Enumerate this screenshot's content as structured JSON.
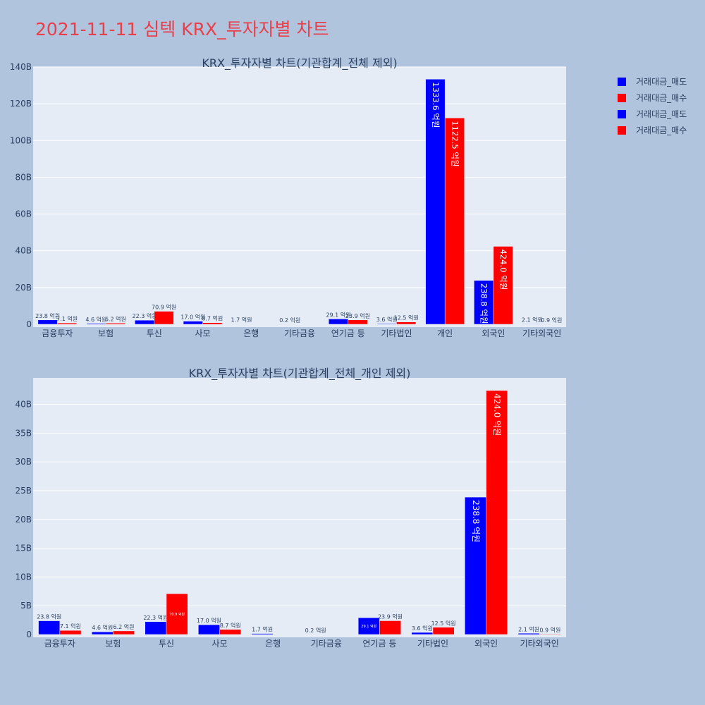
{
  "page": {
    "title": "2021-11-11 심텍 KRX_투자자별 차트"
  },
  "legend": {
    "items": [
      {
        "label": "거래대금_매도",
        "color": "#0000ff"
      },
      {
        "label": "거래대금_매수",
        "color": "#ff0000"
      },
      {
        "label": "거래대금_매도",
        "color": "#0000ff"
      },
      {
        "label": "거래대금_매수",
        "color": "#ff0000"
      }
    ]
  },
  "chart_data": [
    {
      "type": "bar",
      "title": "KRX_투자자별 차트(기관합계_전체 제외)",
      "categories": [
        "금융투자",
        "보험",
        "투신",
        "사모",
        "은행",
        "기타금융",
        "연기금 등",
        "기타법인",
        "개인",
        "외국인",
        "기타외국인"
      ],
      "series": [
        {
          "name": "거래대금_매도",
          "color": "#0000ff",
          "values": [
            2.38,
            0.46,
            2.23,
            1.7,
            0.17,
            0.02,
            2.91,
            0.36,
            133.36,
            23.88,
            0.21
          ],
          "labels": [
            "23.8 억원",
            "4.6 억원",
            "22.3 억원",
            "17.0 억원",
            "1.7 억원",
            "0.2 억원",
            "29.1 억원",
            "3.6 억원",
            "1333.6 억원",
            "238.8 억원",
            "2.1 억원"
          ]
        },
        {
          "name": "거래대금_매수",
          "color": "#ff0000",
          "values": [
            0.71,
            0.62,
            7.09,
            0.87,
            0,
            0,
            2.39,
            1.25,
            112.25,
            42.4,
            0.09
          ],
          "labels": [
            "7.1 억원",
            "6.2 억원",
            "70.9 억원",
            "8.7 억원",
            "",
            "",
            "23.9 억원",
            "12.5 억원",
            "1122.5 억원",
            "424.0 억원",
            "0.9 억원"
          ]
        }
      ],
      "yticks": [
        "0",
        "20B",
        "40B",
        "60B",
        "80B",
        "100B",
        "120B",
        "140B"
      ],
      "ylim": [
        0,
        140
      ],
      "grid": true
    },
    {
      "type": "bar",
      "title": "KRX_투자자별 차트(기관합계_전체_개인 제외)",
      "categories": [
        "금융투자",
        "보험",
        "투신",
        "사모",
        "은행",
        "기타금융",
        "연기금 등",
        "기타법인",
        "외국인",
        "기타외국인"
      ],
      "series": [
        {
          "name": "거래대금_매도",
          "color": "#0000ff",
          "values": [
            2.38,
            0.46,
            2.23,
            1.7,
            0.17,
            0.02,
            2.91,
            0.36,
            23.88,
            0.21
          ],
          "labels": [
            "23.8 억원",
            "4.6 억원",
            "22.3 억원",
            "17.0 억원",
            "1.7 억원",
            "0.2 억원",
            "29.1 억원",
            "3.6 억원",
            "238.8 억원",
            "2.1 억원"
          ]
        },
        {
          "name": "거래대금_매수",
          "color": "#ff0000",
          "values": [
            0.71,
            0.62,
            7.09,
            0.87,
            0,
            0,
            2.39,
            1.25,
            42.4,
            0.09
          ],
          "labels": [
            "7.1 억원",
            "6.2 억원",
            "70.9 억원",
            "8.7 억원",
            "",
            "",
            "23.9 억원",
            "12.5 억원",
            "424.0 억원",
            "0.9 억원"
          ]
        }
      ],
      "yticks": [
        "0",
        "5B",
        "10B",
        "15B",
        "20B",
        "25B",
        "30B",
        "35B",
        "40B"
      ],
      "ylim": [
        0,
        44.6
      ],
      "grid": true
    }
  ]
}
